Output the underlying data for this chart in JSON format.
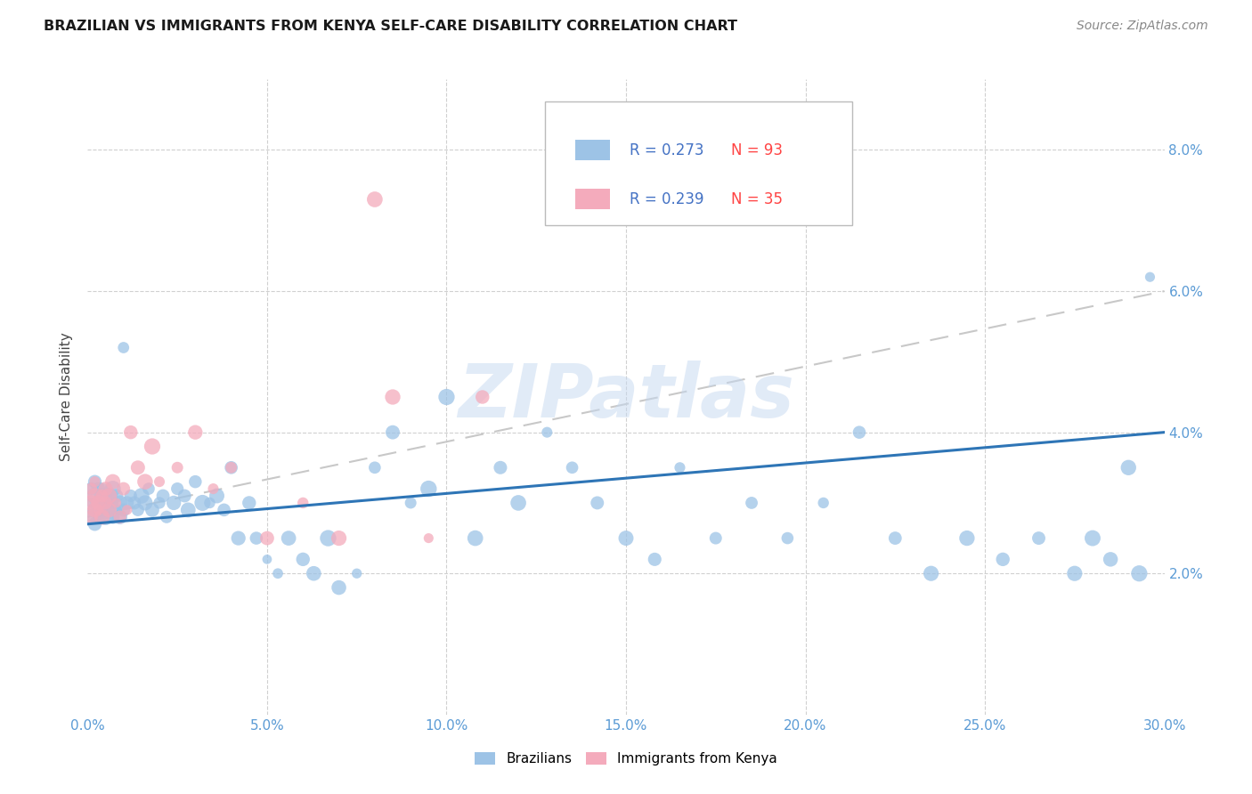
{
  "title": "BRAZILIAN VS IMMIGRANTS FROM KENYA SELF-CARE DISABILITY CORRELATION CHART",
  "source": "Source: ZipAtlas.com",
  "ylabel": "Self-Care Disability",
  "xlim": [
    0.0,
    0.3
  ],
  "ylim": [
    0.0,
    0.09
  ],
  "xticks": [
    0.0,
    0.05,
    0.1,
    0.15,
    0.2,
    0.25,
    0.3
  ],
  "yticks": [
    0.0,
    0.02,
    0.04,
    0.06,
    0.08
  ],
  "xticklabels": [
    "0.0%",
    "5.0%",
    "10.0%",
    "15.0%",
    "20.0%",
    "25.0%",
    "30.0%"
  ],
  "yticklabels": [
    "",
    "2.0%",
    "4.0%",
    "6.0%",
    "8.0%"
  ],
  "legend_r_braz": "R = 0.273",
  "legend_n_braz": "N = 93",
  "legend_r_kenya": "R = 0.239",
  "legend_n_kenya": "N = 35",
  "r_color": "#4472C4",
  "n_color": "#FF0000",
  "brazilian_color": "#9DC3E6",
  "kenya_color": "#F4ABBC",
  "trendline_braz_color": "#2E75B6",
  "trendline_kenya_color": "#C9C9C9",
  "watermark": "ZIPatlas",
  "background_color": "#ffffff",
  "braz_x": [
    0.001,
    0.001,
    0.001,
    0.002,
    0.002,
    0.002,
    0.002,
    0.003,
    0.003,
    0.003,
    0.003,
    0.004,
    0.004,
    0.004,
    0.004,
    0.005,
    0.005,
    0.005,
    0.005,
    0.006,
    0.006,
    0.006,
    0.007,
    0.007,
    0.007,
    0.008,
    0.008,
    0.009,
    0.009,
    0.01,
    0.01,
    0.011,
    0.012,
    0.013,
    0.014,
    0.015,
    0.016,
    0.017,
    0.018,
    0.02,
    0.021,
    0.022,
    0.024,
    0.025,
    0.027,
    0.028,
    0.03,
    0.032,
    0.034,
    0.036,
    0.038,
    0.04,
    0.042,
    0.045,
    0.047,
    0.05,
    0.053,
    0.056,
    0.06,
    0.063,
    0.067,
    0.07,
    0.075,
    0.08,
    0.085,
    0.09,
    0.095,
    0.1,
    0.108,
    0.115,
    0.12,
    0.128,
    0.135,
    0.142,
    0.15,
    0.158,
    0.165,
    0.175,
    0.185,
    0.195,
    0.205,
    0.215,
    0.225,
    0.235,
    0.245,
    0.255,
    0.265,
    0.275,
    0.28,
    0.285,
    0.29,
    0.293,
    0.296
  ],
  "braz_y": [
    0.03,
    0.028,
    0.032,
    0.029,
    0.031,
    0.027,
    0.033,
    0.03,
    0.028,
    0.032,
    0.029,
    0.031,
    0.03,
    0.028,
    0.032,
    0.03,
    0.029,
    0.031,
    0.028,
    0.03,
    0.029,
    0.031,
    0.03,
    0.028,
    0.032,
    0.029,
    0.031,
    0.03,
    0.028,
    0.029,
    0.052,
    0.03,
    0.031,
    0.03,
    0.029,
    0.031,
    0.03,
    0.032,
    0.029,
    0.03,
    0.031,
    0.028,
    0.03,
    0.032,
    0.031,
    0.029,
    0.033,
    0.03,
    0.03,
    0.031,
    0.029,
    0.035,
    0.025,
    0.03,
    0.025,
    0.022,
    0.02,
    0.025,
    0.022,
    0.02,
    0.025,
    0.018,
    0.02,
    0.035,
    0.04,
    0.03,
    0.032,
    0.045,
    0.025,
    0.035,
    0.03,
    0.04,
    0.035,
    0.03,
    0.025,
    0.022,
    0.035,
    0.025,
    0.03,
    0.025,
    0.03,
    0.04,
    0.025,
    0.02,
    0.025,
    0.022,
    0.025,
    0.02,
    0.025,
    0.022,
    0.035,
    0.02,
    0.062
  ],
  "kenya_x": [
    0.001,
    0.001,
    0.001,
    0.002,
    0.002,
    0.002,
    0.003,
    0.003,
    0.004,
    0.004,
    0.005,
    0.005,
    0.006,
    0.006,
    0.007,
    0.008,
    0.009,
    0.01,
    0.011,
    0.012,
    0.014,
    0.016,
    0.018,
    0.02,
    0.025,
    0.03,
    0.035,
    0.04,
    0.05,
    0.06,
    0.07,
    0.08,
    0.095,
    0.11,
    0.085
  ],
  "kenya_y": [
    0.03,
    0.032,
    0.028,
    0.031,
    0.029,
    0.033,
    0.03,
    0.029,
    0.031,
    0.028,
    0.03,
    0.032,
    0.029,
    0.031,
    0.033,
    0.03,
    0.028,
    0.032,
    0.029,
    0.04,
    0.035,
    0.033,
    0.038,
    0.033,
    0.035,
    0.04,
    0.032,
    0.035,
    0.025,
    0.03,
    0.025,
    0.073,
    0.025,
    0.045,
    0.045
  ]
}
